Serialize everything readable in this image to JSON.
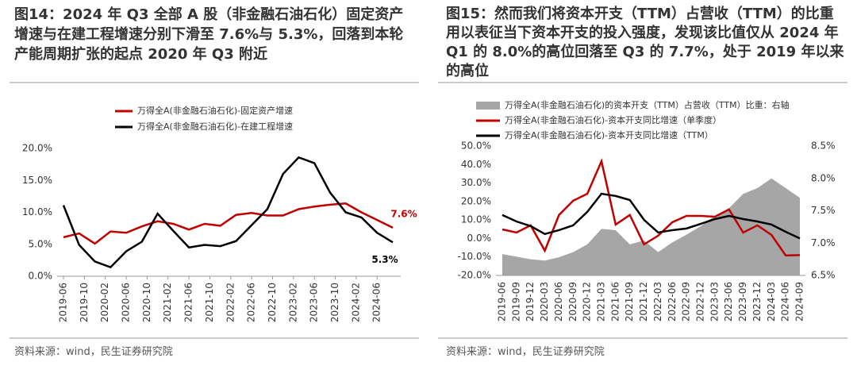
{
  "chart_data": [
    {
      "type": "line",
      "title": "图14：2024 年 Q3 全部 A 股（非金融石油石化）固定资产增速与在建工程增速分别下滑至 7.6%与 5.3%，回落到本轮产能周期扩张的起点 2020 年 Q3 附近",
      "source": "资料来源：wind，民生证券研究院",
      "x": [
        "2019-06",
        "2019-09",
        "2019-12",
        "2020-03",
        "2020-06",
        "2020-09",
        "2020-12",
        "2021-03",
        "2021-06",
        "2021-09",
        "2021-12",
        "2022-03",
        "2022-06",
        "2022-09",
        "2022-12",
        "2023-03",
        "2023-06",
        "2023-09",
        "2023-12",
        "2024-03",
        "2024-06",
        "2024-09"
      ],
      "xticks": [
        "2019-06",
        "2019-10",
        "2020-02",
        "2020-06",
        "2020-10",
        "2021-02",
        "2021-06",
        "2021-10",
        "2022-02",
        "2022-06",
        "2022-10",
        "2023-02",
        "2023-06",
        "2023-10",
        "2024-02",
        "2024-06"
      ],
      "ylim": [
        0,
        20
      ],
      "yticks": [
        {
          "value": 0,
          "label": "0.0%"
        },
        {
          "value": 5,
          "label": "5.0%"
        },
        {
          "value": 10,
          "label": "10.0%"
        },
        {
          "value": 15,
          "label": "15.0%"
        },
        {
          "value": 20,
          "label": "20.0%"
        }
      ],
      "grid": false,
      "series": [
        {
          "name": "万得全A(非金融石油石化)-固定资产增速",
          "color": "#c00000",
          "values": [
            6.1,
            6.7,
            5.1,
            7.0,
            6.8,
            7.8,
            8.6,
            8.2,
            7.3,
            8.2,
            7.9,
            9.6,
            9.9,
            9.5,
            9.5,
            10.5,
            10.9,
            11.2,
            11.4,
            10.0,
            8.8,
            7.6
          ],
          "value_labels": [
            null,
            null,
            null,
            null,
            null,
            null,
            null,
            null,
            null,
            null,
            null,
            null,
            null,
            null,
            null,
            null,
            null,
            null,
            null,
            null,
            null,
            "7.6%"
          ]
        },
        {
          "name": "万得全A(非金融石油石化)-在建工程增速",
          "color": "#000000",
          "values": [
            11.1,
            4.9,
            2.3,
            1.4,
            3.9,
            5.4,
            9.8,
            7.1,
            4.5,
            4.9,
            4.7,
            5.5,
            8.0,
            10.5,
            16.0,
            18.6,
            17.7,
            13.1,
            10.0,
            9.2,
            6.8,
            5.3
          ],
          "value_labels": [
            null,
            null,
            null,
            null,
            null,
            null,
            null,
            null,
            null,
            null,
            null,
            null,
            null,
            null,
            null,
            null,
            null,
            null,
            null,
            null,
            null,
            "5.3%"
          ]
        }
      ]
    },
    {
      "type": "line",
      "title": "图15：然而我们将资本开支（TTM）占营收（TTM）的比重用以表征当下资本开支的投入强度，发现该比值仅从 2024 年 Q1 的 8.0%的高位回落至 Q3 的 7.7%，处于 2019 年以来的高位",
      "source": "资料来源：wind，民生证券研究院",
      "categories": [
        "2019-06",
        "2019-09",
        "2019-12",
        "2020-03",
        "2020-06",
        "2020-09",
        "2020-12",
        "2021-03",
        "2021-06",
        "2021-09",
        "2021-12",
        "2022-03",
        "2022-06",
        "2022-09",
        "2022-12",
        "2023-03",
        "2023-06",
        "2023-09",
        "2023-12",
        "2024-03",
        "2024-06",
        "2024-09"
      ],
      "ylim": [
        -20,
        50
      ],
      "yticks": [
        {
          "value": -20,
          "label": "-20.0%"
        },
        {
          "value": -10,
          "label": "-10.0%"
        },
        {
          "value": 0,
          "label": "0.0%"
        },
        {
          "value": 10,
          "label": "10.0%"
        },
        {
          "value": 20,
          "label": "20.0%"
        },
        {
          "value": 30,
          "label": "30.0%"
        },
        {
          "value": 40,
          "label": "40.0%"
        },
        {
          "value": 50,
          "label": "50.0%"
        }
      ],
      "y2lim": [
        6.5,
        8.5
      ],
      "y2ticks": [
        {
          "value": 6.5,
          "label": "6.5%"
        },
        {
          "value": 7,
          "label": "7.0%"
        },
        {
          "value": 7.5,
          "label": "7.5%"
        },
        {
          "value": 8,
          "label": "8.0%"
        },
        {
          "value": 8.5,
          "label": "8.5%"
        }
      ],
      "grid": false,
      "series": [
        {
          "name": "万得全A(非金融石油石化)的资本开支（TTM）占营收（TTM）比重：右轴",
          "color": "#a6a6a6",
          "type": "area",
          "axis": "y2",
          "values": [
            6.83,
            6.79,
            6.75,
            6.73,
            6.78,
            6.86,
            6.98,
            7.22,
            7.2,
            6.98,
            7.04,
            6.86,
            7.01,
            7.13,
            7.26,
            7.42,
            7.54,
            7.76,
            7.85,
            8.0,
            7.85,
            7.7
          ]
        },
        {
          "name": "万得全A(非金融石油石化)-资本开支同比增速（单季度）",
          "color": "#c00000",
          "type": "line",
          "values": [
            4.9,
            3.2,
            7.1,
            -6.6,
            12.7,
            20.4,
            24.2,
            41.8,
            7.5,
            12.7,
            -3.2,
            1.5,
            8.8,
            12.2,
            12.2,
            11.8,
            15.7,
            3.2,
            7.1,
            1.9,
            -9.2,
            -9.0
          ]
        },
        {
          "name": "万得全A(非金融石油石化)-资本开支同比增速（TTM）",
          "color": "#000000",
          "type": "line",
          "values": [
            12.7,
            9.2,
            6.7,
            2.4,
            4.5,
            7.1,
            14.4,
            24.2,
            23.0,
            20.8,
            10.1,
            3.2,
            4.5,
            5.4,
            7.9,
            10.5,
            12.2,
            10.5,
            9.2,
            7.5,
            3.6,
            0.0
          ]
        }
      ]
    }
  ]
}
